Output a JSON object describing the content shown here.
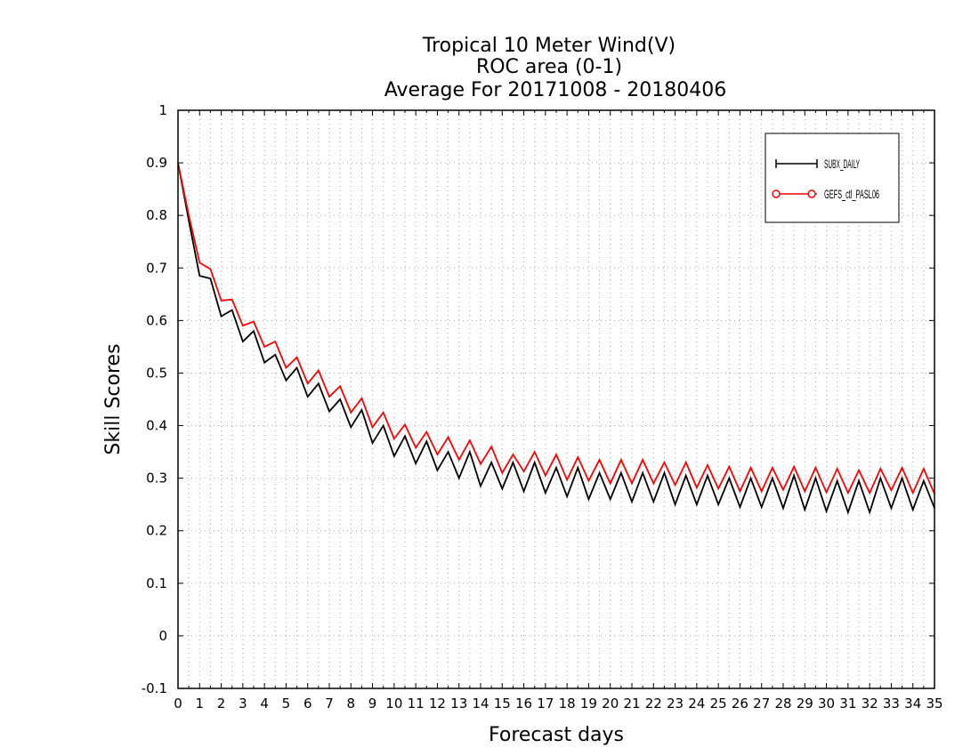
{
  "chart_data": {
    "type": "line",
    "title_lines": [
      "Tropical 10 Meter Wind(V)",
      "ROC area (0-1)",
      "Average For 20171008 - 20180406"
    ],
    "xlabel": "Forecast days",
    "ylabel": "Skill Scores",
    "xlim": [
      0,
      35
    ],
    "ylim": [
      -0.1,
      1
    ],
    "x_ticks": [
      "0",
      "1",
      "2",
      "3",
      "4",
      "5",
      "6",
      "7",
      "8",
      "9",
      "10",
      "11",
      "12",
      "13",
      "14",
      "15",
      "16",
      "17",
      "18",
      "19",
      "20",
      "21",
      "22",
      "23",
      "24",
      "25",
      "26",
      "27",
      "28",
      "29",
      "30",
      "31",
      "32",
      "33",
      "34",
      "35"
    ],
    "y_ticks": [
      "1",
      "0.9",
      "0.8",
      "0.7",
      "0.6",
      "0.5",
      "0.4",
      "0.3",
      "0.2",
      "0.1",
      "0",
      "-0.1"
    ],
    "grid": true,
    "legend_position": "top-right",
    "x": [
      0,
      0.5,
      1,
      1.5,
      2,
      2.5,
      3,
      3.5,
      4,
      4.5,
      5,
      5.5,
      6,
      6.5,
      7,
      7.5,
      8,
      8.5,
      9,
      9.5,
      10,
      10.5,
      11,
      11.5,
      12,
      12.5,
      13,
      13.5,
      14,
      14.5,
      15,
      15.5,
      16,
      16.5,
      17,
      17.5,
      18,
      18.5,
      19,
      19.5,
      20,
      20.5,
      21,
      21.5,
      22,
      22.5,
      23,
      23.5,
      24,
      24.5,
      25,
      25.5,
      26,
      26.5,
      27,
      27.5,
      28,
      28.5,
      29,
      29.5,
      30,
      30.5,
      31,
      31.5,
      32,
      32.5,
      33,
      33.5,
      34,
      34.5,
      35
    ],
    "series": [
      {
        "name": "SUBX_DAILY",
        "color": "#000000",
        "marker": "plus",
        "values": [
          0.9,
          0.79,
          0.685,
          0.68,
          0.608,
          0.62,
          0.56,
          0.58,
          0.52,
          0.535,
          0.486,
          0.51,
          0.455,
          0.48,
          0.427,
          0.45,
          0.397,
          0.43,
          0.367,
          0.4,
          0.342,
          0.38,
          0.328,
          0.37,
          0.315,
          0.35,
          0.3,
          0.35,
          0.285,
          0.33,
          0.28,
          0.33,
          0.275,
          0.33,
          0.272,
          0.32,
          0.265,
          0.32,
          0.26,
          0.31,
          0.26,
          0.31,
          0.255,
          0.31,
          0.255,
          0.31,
          0.25,
          0.305,
          0.25,
          0.305,
          0.25,
          0.3,
          0.245,
          0.3,
          0.245,
          0.3,
          0.243,
          0.305,
          0.24,
          0.3,
          0.237,
          0.295,
          0.235,
          0.295,
          0.235,
          0.3,
          0.243,
          0.3,
          0.24,
          0.295,
          0.243
        ]
      },
      {
        "name": "GEFS_ctl_PASL06",
        "color": "#ff0000",
        "marker": "circle",
        "values": [
          0.9,
          0.8,
          0.71,
          0.698,
          0.638,
          0.64,
          0.59,
          0.598,
          0.55,
          0.56,
          0.51,
          0.53,
          0.48,
          0.505,
          0.455,
          0.475,
          0.425,
          0.452,
          0.397,
          0.425,
          0.375,
          0.402,
          0.358,
          0.388,
          0.345,
          0.378,
          0.335,
          0.372,
          0.327,
          0.36,
          0.31,
          0.345,
          0.313,
          0.35,
          0.305,
          0.345,
          0.297,
          0.34,
          0.295,
          0.335,
          0.29,
          0.335,
          0.29,
          0.335,
          0.29,
          0.33,
          0.287,
          0.33,
          0.282,
          0.325,
          0.28,
          0.322,
          0.275,
          0.32,
          0.275,
          0.32,
          0.278,
          0.322,
          0.275,
          0.32,
          0.273,
          0.318,
          0.272,
          0.315,
          0.272,
          0.318,
          0.277,
          0.32,
          0.272,
          0.318,
          0.27
        ]
      }
    ]
  },
  "legend": {
    "items": [
      {
        "label": "SUBX_DAILY",
        "color": "#000000"
      },
      {
        "label": "GEFS_ctl_PASL06",
        "color": "#ff0000"
      }
    ]
  }
}
